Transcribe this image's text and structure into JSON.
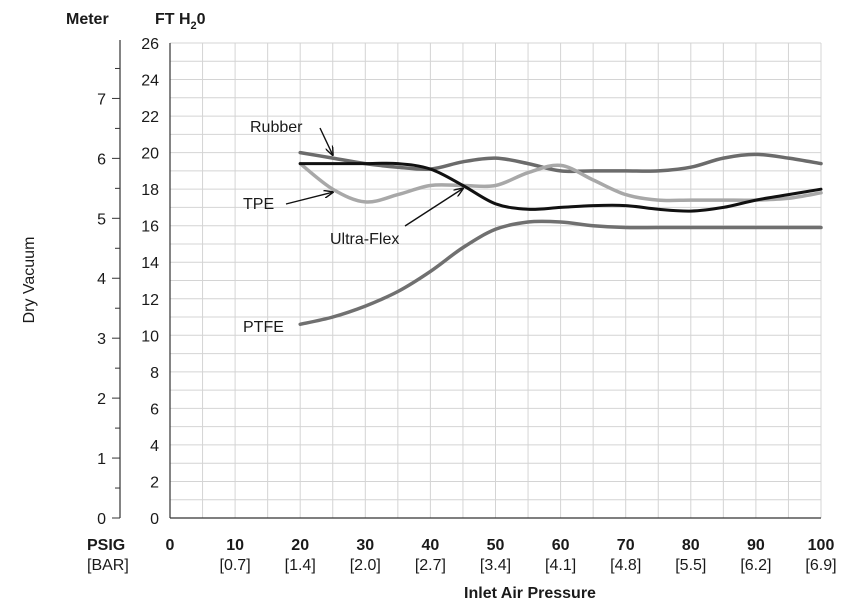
{
  "chart_data": {
    "type": "line",
    "ylabel": "Dry Vacuum",
    "xlabel": "Inlet Air Pressure",
    "left_axis_unit": "Meter",
    "right_axis_unit_main": "FT H",
    "right_axis_unit_sub": "2",
    "right_axis_unit_end": "0",
    "x_row_label": "PSIG",
    "bar_row_label": "[BAR]",
    "x_ticks": [
      0,
      10,
      20,
      30,
      40,
      50,
      60,
      70,
      80,
      90,
      100
    ],
    "bar_ticks": [
      "[0.7]",
      "[1.4]",
      "[2.0]",
      "[2.7]",
      "[3.4]",
      "[4.1]",
      "[4.8]",
      "[5.5]",
      "[6.2]",
      "[6.9]"
    ],
    "bar_tick_x": [
      10,
      20,
      30,
      40,
      50,
      60,
      70,
      80,
      90,
      100
    ],
    "ft_ticks": [
      0,
      2,
      4,
      6,
      8,
      10,
      12,
      14,
      16,
      18,
      20,
      22,
      24,
      26
    ],
    "meter_ticks": [
      0,
      1,
      2,
      3,
      4,
      5,
      6,
      7
    ],
    "xlim": [
      0,
      100
    ],
    "ylim_ft": [
      0,
      26
    ],
    "grid": true,
    "series": [
      {
        "name": "Rubber",
        "color": "#6b6b6b",
        "x": [
          20,
          25,
          30,
          35,
          40,
          45,
          50,
          55,
          60,
          65,
          70,
          75,
          80,
          85,
          90,
          95,
          100
        ],
        "y": [
          20.0,
          19.7,
          19.4,
          19.2,
          19.1,
          19.5,
          19.7,
          19.4,
          19.0,
          19.0,
          19.0,
          19.0,
          19.2,
          19.7,
          19.9,
          19.7,
          19.4
        ]
      },
      {
        "name": "TPE",
        "color": "#a8a8a8",
        "x": [
          20,
          25,
          30,
          35,
          40,
          45,
          50,
          55,
          60,
          65,
          70,
          75,
          80,
          85,
          90,
          95,
          100
        ],
        "y": [
          19.4,
          18.0,
          17.3,
          17.7,
          18.2,
          18.2,
          18.2,
          18.9,
          19.3,
          18.5,
          17.7,
          17.4,
          17.4,
          17.4,
          17.4,
          17.5,
          17.8
        ]
      },
      {
        "name": "Ultra-Flex",
        "color": "#111111",
        "x": [
          20,
          25,
          30,
          35,
          40,
          45,
          50,
          55,
          60,
          65,
          70,
          75,
          80,
          85,
          90,
          95,
          100
        ],
        "y": [
          19.4,
          19.4,
          19.4,
          19.4,
          19.1,
          18.2,
          17.2,
          16.9,
          17.0,
          17.1,
          17.1,
          16.9,
          16.8,
          17.0,
          17.4,
          17.7,
          18.0
        ]
      },
      {
        "name": "PTFE",
        "color": "#707070",
        "x": [
          20,
          25,
          30,
          35,
          40,
          45,
          50,
          55,
          60,
          65,
          70,
          75,
          80,
          85,
          90,
          95,
          100
        ],
        "y": [
          10.6,
          11.0,
          11.6,
          12.4,
          13.5,
          14.8,
          15.8,
          16.2,
          16.2,
          16.0,
          15.9,
          15.9,
          15.9,
          15.9,
          15.9,
          15.9,
          15.9
        ]
      }
    ],
    "annotations": [
      {
        "text": "Rubber",
        "series": 0,
        "at_x": 25
      },
      {
        "text": "TPE",
        "series": 1,
        "at_x": 25
      },
      {
        "text": "Ultra-Flex",
        "series": 2,
        "at_x": 45
      },
      {
        "text": "PTFE",
        "series": 3,
        "at_x": 20
      }
    ]
  }
}
